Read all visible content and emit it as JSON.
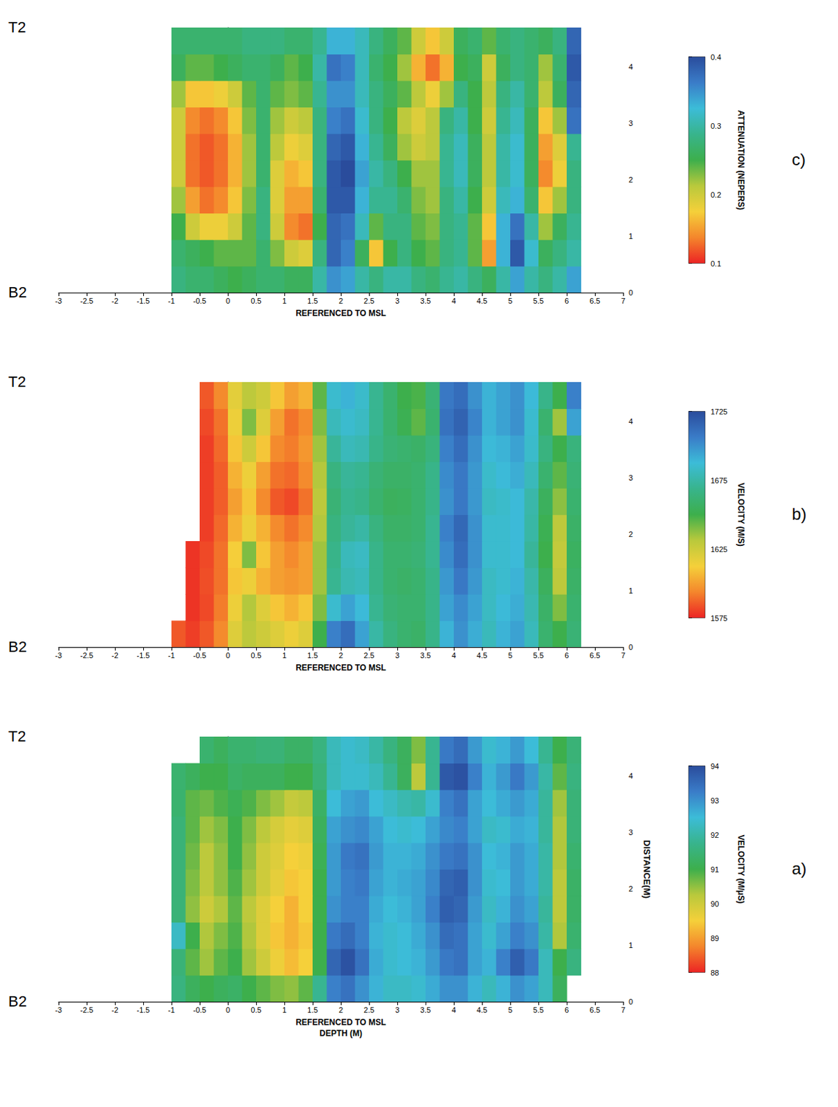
{
  "chart_data": [
    {
      "type": "heatmap",
      "title": "a)",
      "start_label": "B2",
      "end_label": "T2",
      "xlabel": "REFERENCED TO MSL",
      "xlabel2": "DEPTH (M)",
      "ylabel": "DISTANCE(M)",
      "xlim": [
        -3,
        7
      ],
      "xticks": [
        -3,
        -2.5,
        -2,
        -1.5,
        -1,
        -0.5,
        0,
        0.5,
        1,
        1.5,
        2,
        2.5,
        3,
        3.5,
        4,
        4.5,
        5,
        5.5,
        6,
        6.5,
        7
      ],
      "ylim": [
        0,
        4.7
      ],
      "yticks": [
        0,
        1,
        2,
        3,
        4
      ],
      "grid": false,
      "colors": [
        "#ec2424",
        "#f4862c",
        "#f5d03a",
        "#b9c93c",
        "#3daf4c",
        "#38b48c",
        "#3cbcd8",
        "#3a7cc8",
        "#2a4c9c"
      ],
      "colorbar": {
        "label": "VELOCITY (M/μS)",
        "lim": [
          88,
          94
        ],
        "ticks": [
          88,
          89,
          90,
          91,
          92,
          93,
          94
        ]
      },
      "x": [
        -0.875,
        -0.625,
        -0.375,
        -0.125,
        0.125,
        0.375,
        0.625,
        0.875,
        1.125,
        1.375,
        1.625,
        1.875,
        2.125,
        2.375,
        2.625,
        2.875,
        3.125,
        3.375,
        3.625,
        3.875,
        4.125,
        4.375,
        4.625,
        4.875,
        5.125,
        5.375,
        5.625,
        5.875,
        6.125
      ],
      "y": [
        0.235,
        0.705,
        1.175,
        1.645,
        2.115,
        2.585,
        3.055,
        3.525,
        3.995,
        4.465
      ],
      "values": [
        [
          91.6,
          91.2,
          91.0,
          91.2,
          91.3,
          91.0,
          90.8,
          90.6,
          90.5,
          90.8,
          91.8,
          93.2,
          93.4,
          93.0,
          92.6,
          92.3,
          92.3,
          92.4,
          92.7,
          93.0,
          93.0,
          92.6,
          92.2,
          92.6,
          93.0,
          92.8,
          92.2,
          91.2,
          null
        ],
        [
          91.5,
          90.8,
          90.4,
          90.8,
          91.0,
          90.4,
          90.0,
          89.6,
          89.3,
          89.5,
          91.0,
          93.6,
          93.9,
          93.4,
          92.7,
          92.4,
          92.5,
          92.6,
          92.9,
          93.3,
          93.4,
          92.8,
          92.6,
          93.2,
          93.7,
          93.3,
          92.2,
          91.0,
          91.6
        ],
        [
          92.3,
          91.0,
          90.3,
          90.6,
          90.9,
          90.3,
          89.8,
          89.4,
          89.2,
          89.4,
          91.0,
          93.3,
          93.5,
          93.2,
          92.6,
          92.4,
          92.5,
          92.7,
          93.0,
          93.5,
          93.4,
          92.8,
          92.4,
          92.8,
          93.2,
          93.0,
          92.0,
          90.3,
          91.4
        ],
        [
          91.5,
          90.5,
          90.0,
          90.3,
          90.8,
          90.2,
          89.8,
          89.5,
          89.2,
          89.5,
          91.0,
          93.0,
          93.2,
          93.2,
          92.7,
          92.5,
          92.6,
          92.8,
          93.2,
          93.7,
          93.6,
          92.9,
          92.3,
          92.6,
          93.0,
          92.8,
          91.9,
          90.2,
          91.3
        ],
        [
          91.5,
          90.6,
          90.2,
          90.5,
          90.9,
          90.4,
          90.0,
          89.7,
          89.4,
          89.5,
          91.0,
          92.9,
          93.2,
          93.3,
          92.8,
          92.6,
          92.7,
          92.8,
          93.1,
          93.6,
          93.7,
          93.0,
          92.4,
          92.5,
          92.9,
          92.7,
          92.0,
          90.2,
          91.3
        ],
        [
          91.5,
          90.7,
          90.2,
          90.5,
          91.0,
          90.5,
          90.0,
          89.8,
          89.5,
          89.6,
          91.1,
          92.9,
          93.3,
          93.4,
          92.9,
          92.6,
          92.6,
          92.7,
          93.0,
          93.3,
          93.4,
          93.0,
          92.5,
          92.6,
          92.9,
          92.7,
          92.0,
          90.3,
          91.4
        ],
        [
          91.5,
          90.8,
          90.4,
          90.6,
          91.0,
          90.6,
          90.2,
          89.9,
          89.7,
          89.8,
          91.2,
          92.8,
          93.0,
          93.1,
          92.8,
          92.5,
          92.4,
          92.5,
          92.8,
          93.1,
          93.2,
          92.8,
          92.3,
          92.4,
          92.7,
          92.6,
          91.9,
          90.3,
          91.5
        ],
        [
          91.4,
          90.8,
          90.7,
          90.9,
          91.1,
          90.9,
          90.6,
          90.4,
          90.1,
          90.2,
          91.3,
          92.5,
          92.8,
          92.9,
          92.5,
          92.3,
          92.1,
          92.0,
          92.4,
          93.2,
          93.4,
          92.8,
          92.5,
          92.7,
          92.9,
          92.7,
          91.9,
          90.4,
          91.5
        ],
        [
          91.4,
          91.2,
          91.0,
          91.0,
          91.3,
          91.2,
          91.2,
          91.2,
          91.0,
          91.0,
          91.5,
          92.2,
          92.4,
          92.4,
          92.2,
          91.8,
          91.2,
          90.2,
          91.8,
          93.8,
          93.9,
          93.2,
          92.6,
          92.9,
          93.3,
          92.9,
          92.0,
          90.8,
          91.6
        ],
        [
          null,
          null,
          91.4,
          91.2,
          91.4,
          91.4,
          91.5,
          91.5,
          91.3,
          91.3,
          91.6,
          92.2,
          92.4,
          92.3,
          92.0,
          91.6,
          91.2,
          90.6,
          91.8,
          93.3,
          93.5,
          92.9,
          92.4,
          92.6,
          92.9,
          92.5,
          91.8,
          91.0,
          91.5
        ]
      ]
    },
    {
      "type": "heatmap",
      "title": "b)",
      "start_label": "B2",
      "end_label": "T2",
      "xlabel": "REFERENCED TO MSL",
      "xlim": [
        -3,
        7
      ],
      "xticks": [
        -3,
        -2.5,
        -2,
        -1.5,
        -1,
        -0.5,
        0,
        0.5,
        1,
        1.5,
        2,
        2.5,
        3,
        3.5,
        4,
        4.5,
        5,
        5.5,
        6,
        6.5,
        7
      ],
      "ylim": [
        0,
        4.7
      ],
      "yticks": [
        0,
        1,
        2,
        3,
        4
      ],
      "grid": false,
      "colors": [
        "#ec2424",
        "#f4862c",
        "#f5d03a",
        "#b9c93c",
        "#3daf4c",
        "#38b48c",
        "#3cbcd8",
        "#3a7cc8",
        "#2a4c9c"
      ],
      "colorbar": {
        "label": "VELOCITY (M/S)",
        "lim": [
          1575,
          1725
        ],
        "ticks": [
          1575,
          1625,
          1675,
          1725
        ]
      },
      "x": [
        -0.875,
        -0.625,
        -0.375,
        -0.125,
        0.125,
        0.375,
        0.625,
        0.875,
        1.125,
        1.375,
        1.625,
        1.875,
        2.125,
        2.375,
        2.625,
        2.875,
        3.125,
        3.375,
        3.625,
        3.875,
        4.125,
        4.375,
        4.625,
        4.875,
        5.125,
        5.375,
        5.625,
        5.875,
        6.125
      ],
      "y": [
        0.235,
        0.705,
        1.175,
        1.645,
        2.115,
        2.585,
        3.055,
        3.525,
        3.995,
        4.465
      ],
      "values": [
        [
          1585,
          1580,
          1585,
          1595,
          1620,
          1630,
          1625,
          1620,
          1615,
          1620,
          1650,
          1705,
          1712,
          1695,
          1675,
          1665,
          1660,
          1658,
          1668,
          1690,
          1700,
          1692,
          1680,
          1690,
          1695,
          1680,
          1660,
          1650,
          1662
        ],
        [
          null,
          1578,
          1582,
          1592,
          1615,
          1632,
          1620,
          1610,
          1605,
          1610,
          1640,
          1685,
          1695,
          1688,
          1670,
          1662,
          1660,
          1660,
          1668,
          1695,
          1702,
          1695,
          1682,
          1688,
          1692,
          1678,
          1658,
          1640,
          1660
        ],
        [
          null,
          1578,
          1583,
          1590,
          1610,
          1615,
          1605,
          1600,
          1598,
          1600,
          1635,
          1670,
          1678,
          1680,
          1668,
          1660,
          1658,
          1660,
          1668,
          1698,
          1708,
          1698,
          1682,
          1685,
          1690,
          1676,
          1655,
          1630,
          1658
        ],
        [
          null,
          1578,
          1582,
          1590,
          1612,
          1640,
          1610,
          1600,
          1595,
          1600,
          1635,
          1668,
          1680,
          1682,
          1668,
          1660,
          1660,
          1662,
          1670,
          1702,
          1712,
          1700,
          1685,
          1685,
          1688,
          1672,
          1650,
          1628,
          1656
        ],
        [
          null,
          null,
          1580,
          1588,
          1605,
          1615,
          1605,
          1595,
          1590,
          1595,
          1632,
          1665,
          1672,
          1675,
          1665,
          1658,
          1658,
          1660,
          1670,
          1705,
          1714,
          1700,
          1685,
          1685,
          1688,
          1675,
          1652,
          1630,
          1658
        ],
        [
          null,
          null,
          1580,
          1586,
          1600,
          1610,
          1595,
          1585,
          1582,
          1590,
          1630,
          1662,
          1670,
          1668,
          1660,
          1655,
          1656,
          1660,
          1668,
          1700,
          1708,
          1698,
          1682,
          1684,
          1688,
          1676,
          1655,
          1638,
          1660
        ],
        [
          null,
          null,
          1580,
          1586,
          1605,
          1615,
          1600,
          1590,
          1588,
          1595,
          1632,
          1665,
          1672,
          1670,
          1662,
          1658,
          1658,
          1660,
          1668,
          1702,
          1708,
          1698,
          1684,
          1688,
          1692,
          1680,
          1660,
          1645,
          1662
        ],
        [
          null,
          null,
          1580,
          1588,
          1610,
          1625,
          1610,
          1595,
          1592,
          1598,
          1635,
          1672,
          1680,
          1678,
          1668,
          1662,
          1660,
          1658,
          1664,
          1705,
          1712,
          1700,
          1688,
          1690,
          1695,
          1684,
          1665,
          1650,
          1664
        ],
        [
          null,
          null,
          1582,
          1590,
          1615,
          1640,
          1620,
          1600,
          1590,
          1595,
          1640,
          1680,
          1685,
          1682,
          1670,
          1660,
          1652,
          1645,
          1660,
          1710,
          1716,
          1704,
          1690,
          1695,
          1700,
          1685,
          1660,
          1635,
          1695
        ],
        [
          null,
          null,
          1585,
          1595,
          1618,
          1630,
          1625,
          1610,
          1600,
          1605,
          1645,
          1685,
          1690,
          1684,
          1670,
          1660,
          1650,
          1648,
          1662,
          1708,
          1712,
          1700,
          1690,
          1695,
          1700,
          1688,
          1668,
          1650,
          1705
        ]
      ]
    },
    {
      "type": "heatmap",
      "title": "c)",
      "start_label": "B2",
      "end_label": "T2",
      "xlabel": "REFERENCED TO MSL",
      "xlim": [
        -3,
        7
      ],
      "xticks": [
        -3,
        -2.5,
        -2,
        -1.5,
        -1,
        -0.5,
        0,
        0.5,
        1,
        1.5,
        2,
        2.5,
        3,
        3.5,
        4,
        4.5,
        5,
        5.5,
        6,
        6.5,
        7
      ],
      "ylim": [
        0,
        4.7
      ],
      "yticks": [
        0,
        1,
        2,
        3,
        4
      ],
      "grid": false,
      "colors": [
        "#ec2424",
        "#f4862c",
        "#f5d03a",
        "#b9c93c",
        "#3daf4c",
        "#38b48c",
        "#3cbcd8",
        "#3a7cc8",
        "#2a4c9c"
      ],
      "colorbar": {
        "label": "ATTENUATION (NEPERS)",
        "lim": [
          0.1,
          0.4
        ],
        "ticks": [
          0.1,
          0.2,
          0.3,
          0.4
        ]
      },
      "x": [
        -0.875,
        -0.625,
        -0.375,
        -0.125,
        0.125,
        0.375,
        0.625,
        0.875,
        1.125,
        1.375,
        1.625,
        1.875,
        2.125,
        2.375,
        2.625,
        2.875,
        3.125,
        3.375,
        3.625,
        3.875,
        4.125,
        4.375,
        4.625,
        4.875,
        5.125,
        5.375,
        5.625,
        5.875,
        6.125
      ],
      "y": [
        0.235,
        0.705,
        1.175,
        1.645,
        2.115,
        2.585,
        3.055,
        3.525,
        3.995,
        4.465
      ],
      "values": [
        [
          0.28,
          0.27,
          0.27,
          0.26,
          0.25,
          0.26,
          0.27,
          0.27,
          0.26,
          0.26,
          0.3,
          0.35,
          0.34,
          0.3,
          0.28,
          0.3,
          0.3,
          0.28,
          0.27,
          0.29,
          0.3,
          0.28,
          0.26,
          0.3,
          0.34,
          0.3,
          0.28,
          0.3,
          0.34
        ],
        [
          0.27,
          0.26,
          0.25,
          0.24,
          0.24,
          0.24,
          0.27,
          0.23,
          0.2,
          0.19,
          0.28,
          0.38,
          0.36,
          0.26,
          0.17,
          0.25,
          0.28,
          0.25,
          0.24,
          0.28,
          0.29,
          0.24,
          0.15,
          0.33,
          0.39,
          0.32,
          0.26,
          0.28,
          0.3
        ],
        [
          0.25,
          0.2,
          0.18,
          0.18,
          0.2,
          0.24,
          0.28,
          0.2,
          0.14,
          0.13,
          0.25,
          0.38,
          0.37,
          0.31,
          0.24,
          0.28,
          0.28,
          0.24,
          0.23,
          0.28,
          0.29,
          0.24,
          0.17,
          0.33,
          0.37,
          0.3,
          0.22,
          0.26,
          0.29
        ],
        [
          0.22,
          0.15,
          0.13,
          0.14,
          0.17,
          0.23,
          0.28,
          0.19,
          0.15,
          0.15,
          0.27,
          0.39,
          0.39,
          0.33,
          0.29,
          0.29,
          0.27,
          0.23,
          0.22,
          0.28,
          0.3,
          0.25,
          0.2,
          0.31,
          0.33,
          0.27,
          0.17,
          0.22,
          0.28
        ],
        [
          0.2,
          0.13,
          0.12,
          0.13,
          0.16,
          0.22,
          0.27,
          0.19,
          0.16,
          0.17,
          0.28,
          0.39,
          0.4,
          0.34,
          0.3,
          0.28,
          0.25,
          0.22,
          0.22,
          0.29,
          0.31,
          0.26,
          0.21,
          0.3,
          0.32,
          0.26,
          0.14,
          0.18,
          0.28
        ],
        [
          0.2,
          0.13,
          0.12,
          0.13,
          0.16,
          0.22,
          0.27,
          0.21,
          0.18,
          0.19,
          0.28,
          0.38,
          0.39,
          0.33,
          0.29,
          0.26,
          0.22,
          0.2,
          0.21,
          0.29,
          0.31,
          0.26,
          0.21,
          0.3,
          0.32,
          0.26,
          0.15,
          0.19,
          0.29
        ],
        [
          0.2,
          0.14,
          0.13,
          0.14,
          0.17,
          0.23,
          0.27,
          0.22,
          0.2,
          0.21,
          0.28,
          0.36,
          0.37,
          0.32,
          0.28,
          0.25,
          0.21,
          0.19,
          0.21,
          0.28,
          0.3,
          0.25,
          0.2,
          0.29,
          0.31,
          0.26,
          0.17,
          0.22,
          0.37
        ],
        [
          0.22,
          0.17,
          0.17,
          0.18,
          0.2,
          0.24,
          0.27,
          0.24,
          0.23,
          0.24,
          0.29,
          0.35,
          0.35,
          0.31,
          0.28,
          0.26,
          0.24,
          0.21,
          0.18,
          0.22,
          0.28,
          0.25,
          0.21,
          0.28,
          0.3,
          0.27,
          0.21,
          0.26,
          0.38
        ],
        [
          0.26,
          0.24,
          0.24,
          0.25,
          0.26,
          0.27,
          0.27,
          0.26,
          0.24,
          0.25,
          0.3,
          0.37,
          0.36,
          0.31,
          0.27,
          0.25,
          0.22,
          0.16,
          0.13,
          0.16,
          0.25,
          0.26,
          0.2,
          0.26,
          0.28,
          0.27,
          0.22,
          0.27,
          0.39
        ],
        [
          0.27,
          0.27,
          0.27,
          0.27,
          0.27,
          0.28,
          0.28,
          0.28,
          0.27,
          0.27,
          0.29,
          0.33,
          0.33,
          0.31,
          0.28,
          0.26,
          0.24,
          0.2,
          0.17,
          0.2,
          0.26,
          0.27,
          0.24,
          0.27,
          0.28,
          0.27,
          0.26,
          0.28,
          0.38
        ]
      ]
    }
  ]
}
